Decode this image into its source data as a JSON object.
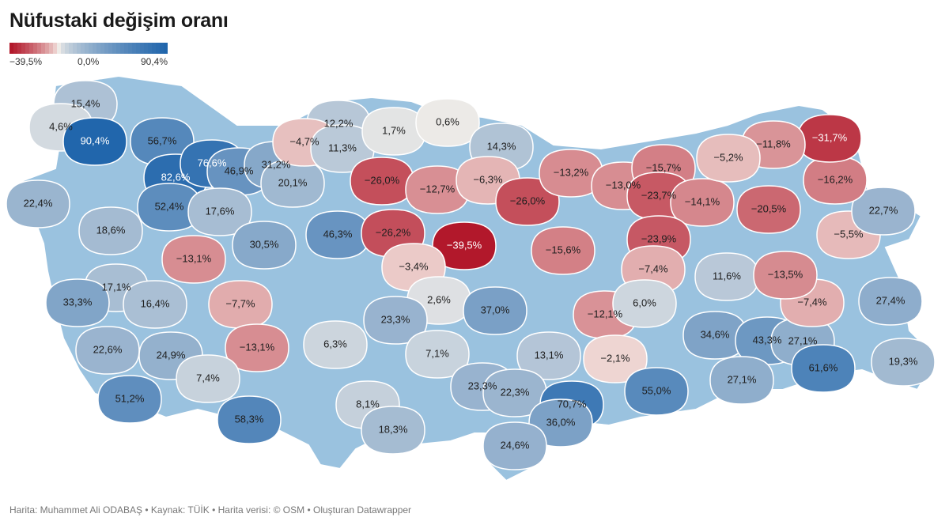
{
  "title": "Nüfustaki değişim oranı",
  "legend": {
    "min_label": "−39,5%",
    "mid_label": "0,0%",
    "max_label": "90,4%",
    "min_color": "#b2182b",
    "mid_color": "#f7f1ea",
    "max_color": "#2166ac"
  },
  "footer": "Harita: Muhammet Ali ODABAŞ • Kaynak: TÜİK • Harita verisi: © OSM  • Oluşturan Datawrapper",
  "map_data": {
    "type": "choropleth",
    "unit": "%",
    "regions": [
      {
        "label": "15,4%",
        "value": 15.4
      },
      {
        "label": "4,6%",
        "value": 4.6
      },
      {
        "label": "90,4%",
        "value": 90.4
      },
      {
        "label": "56,7%",
        "value": 56.7
      },
      {
        "label": "82,6%",
        "value": 82.6
      },
      {
        "label": "76,6%",
        "value": 76.6
      },
      {
        "label": "46,9%",
        "value": 46.9
      },
      {
        "label": "31,2%",
        "value": 31.2
      },
      {
        "label": "20,1%",
        "value": 20.1
      },
      {
        "label": "22,4%",
        "value": 22.4
      },
      {
        "label": "52,4%",
        "value": 52.4
      },
      {
        "label": "17,6%",
        "value": 17.6
      },
      {
        "label": "18,6%",
        "value": 18.6
      },
      {
        "label": "−13,1%",
        "value": -13.1
      },
      {
        "label": "30,5%",
        "value": 30.5
      },
      {
        "label": "46,3%",
        "value": 46.3
      },
      {
        "label": "17,1%",
        "value": 17.1
      },
      {
        "label": "33,3%",
        "value": 33.3
      },
      {
        "label": "16,4%",
        "value": 16.4
      },
      {
        "label": "−7,7%",
        "value": -7.7
      },
      {
        "label": "22,6%",
        "value": 22.6
      },
      {
        "label": "24,9%",
        "value": 24.9
      },
      {
        "label": "−13,1%",
        "value": -13.1
      },
      {
        "label": "7,4%",
        "value": 7.4
      },
      {
        "label": "51,2%",
        "value": 51.2
      },
      {
        "label": "58,3%",
        "value": 58.3
      },
      {
        "label": "6,3%",
        "value": 6.3
      },
      {
        "label": "8,1%",
        "value": 8.1
      },
      {
        "label": "18,3%",
        "value": 18.3
      },
      {
        "label": "12,2%",
        "value": 12.2
      },
      {
        "label": "−4,7%",
        "value": -4.7
      },
      {
        "label": "11,3%",
        "value": 11.3
      },
      {
        "label": "1,7%",
        "value": 1.7
      },
      {
        "label": "0,6%",
        "value": 0.6
      },
      {
        "label": "14,3%",
        "value": 14.3
      },
      {
        "label": "−26,0%",
        "value": -26.0
      },
      {
        "label": "−12,7%",
        "value": -12.7
      },
      {
        "label": "−6,3%",
        "value": -6.3
      },
      {
        "label": "−26,2%",
        "value": -26.2
      },
      {
        "label": "−39,5%",
        "value": -39.5
      },
      {
        "label": "−3,4%",
        "value": -3.4
      },
      {
        "label": "2,6%",
        "value": 2.6
      },
      {
        "label": "23,3%",
        "value": 23.3
      },
      {
        "label": "7,1%",
        "value": 7.1
      },
      {
        "label": "37,0%",
        "value": 37.0
      },
      {
        "label": "−26,0%",
        "value": -26.0
      },
      {
        "label": "−15,6%",
        "value": -15.6
      },
      {
        "label": "−13,2%",
        "value": -13.2
      },
      {
        "label": "−13,0%",
        "value": -13.0
      },
      {
        "label": "−15,7%",
        "value": -15.7
      },
      {
        "label": "−23,7%",
        "value": -23.7
      },
      {
        "label": "−14,1%",
        "value": -14.1
      },
      {
        "label": "−23,9%",
        "value": -23.9
      },
      {
        "label": "−7,4%",
        "value": -7.4
      },
      {
        "label": "−12,1%",
        "value": -12.1
      },
      {
        "label": "−2,1%",
        "value": -2.1
      },
      {
        "label": "6,0%",
        "value": 6.0
      },
      {
        "label": "11,6%",
        "value": 11.6
      },
      {
        "label": "13,1%",
        "value": 13.1
      },
      {
        "label": "23,3%",
        "value": 23.3
      },
      {
        "label": "22,3%",
        "value": 22.3
      },
      {
        "label": "70,7%",
        "value": 70.7
      },
      {
        "label": "36,0%",
        "value": 36.0
      },
      {
        "label": "24,6%",
        "value": 24.6
      },
      {
        "label": "55,0%",
        "value": 55.0
      },
      {
        "label": "34,6%",
        "value": 34.6
      },
      {
        "label": "43,3%",
        "value": 43.3
      },
      {
        "label": "27,1%",
        "value": 27.1
      },
      {
        "label": "27,1%",
        "value": 27.1
      },
      {
        "label": "61,6%",
        "value": 61.6
      },
      {
        "label": "19,3%",
        "value": 19.3
      },
      {
        "label": "27,4%",
        "value": 27.4
      },
      {
        "label": "−7,4%",
        "value": -7.4
      },
      {
        "label": "−13,5%",
        "value": -13.5
      },
      {
        "label": "−5,5%",
        "value": -5.5
      },
      {
        "label": "22,7%",
        "value": 22.7
      },
      {
        "label": "−20,5%",
        "value": -20.5
      },
      {
        "label": "−16,2%",
        "value": -16.2
      },
      {
        "label": "−31,7%",
        "value": -31.7
      },
      {
        "label": "−11,8%",
        "value": -11.8
      },
      {
        "label": "−5,2%",
        "value": -5.2
      }
    ]
  }
}
